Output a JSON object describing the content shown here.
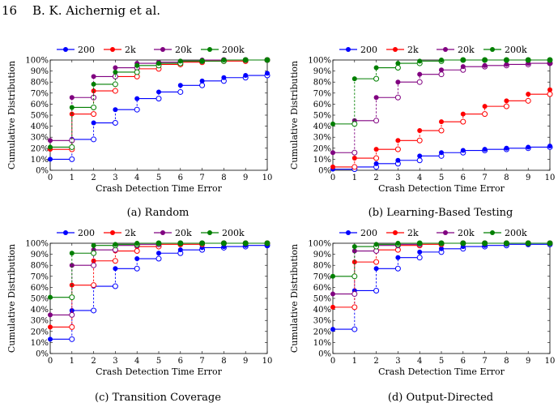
{
  "header": {
    "page_number": "16",
    "authors": "B. K. Aichernig et al."
  },
  "legend_labels": [
    "200",
    "2k",
    "20k",
    "200k"
  ],
  "series_colors": {
    "200": "#0000ff",
    "2k": "#ff0000",
    "20k": "#800080",
    "200k": "#007f00"
  },
  "chart_data": [
    {
      "type": "line",
      "caption": "(a) Random",
      "xlabel": "Crash Detection Time Error",
      "ylabel": "Cumulative Distribution",
      "x": [
        0,
        1,
        2,
        3,
        4,
        5,
        6,
        7,
        8,
        9,
        10
      ],
      "xlim": [
        0,
        10
      ],
      "ylim": [
        0,
        100
      ],
      "x_ticks": [
        "0",
        "1",
        "2",
        "3",
        "4",
        "5",
        "6",
        "7",
        "8",
        "9",
        "10"
      ],
      "y_ticks": [
        "0%",
        "10%",
        "20%",
        "30%",
        "40%",
        "50%",
        "60%",
        "70%",
        "80%",
        "90%",
        "100%"
      ],
      "series": [
        {
          "name": "200",
          "values": [
            10,
            28,
            43,
            55,
            65,
            71,
            77,
            81,
            84,
            86,
            88
          ]
        },
        {
          "name": "2k",
          "values": [
            19,
            51,
            72,
            85,
            92,
            96,
            98,
            99,
            99,
            100,
            100
          ]
        },
        {
          "name": "20k",
          "values": [
            27,
            66,
            85,
            93,
            97,
            98,
            99,
            100,
            100,
            100,
            100
          ]
        },
        {
          "name": "200k",
          "values": [
            21,
            57,
            78,
            89,
            95,
            97,
            99,
            99,
            100,
            100,
            100
          ]
        }
      ]
    },
    {
      "type": "line",
      "caption": "(b) Learning-Based Testing",
      "xlabel": "Crash Detection Time Error",
      "ylabel": "Cumulative Distribution",
      "x": [
        0,
        1,
        2,
        3,
        4,
        5,
        6,
        7,
        8,
        9,
        10
      ],
      "xlim": [
        0,
        10
      ],
      "ylim": [
        0,
        100
      ],
      "x_ticks": [
        "0",
        "1",
        "2",
        "3",
        "4",
        "5",
        "6",
        "7",
        "8",
        "9",
        "10"
      ],
      "y_ticks": [
        "0%",
        "10%",
        "20%",
        "30%",
        "40%",
        "50%",
        "60%",
        "70%",
        "80%",
        "90%",
        "100%"
      ],
      "series": [
        {
          "name": "200",
          "values": [
            1,
            3,
            6,
            9,
            13,
            16,
            18,
            19,
            20,
            21,
            22
          ]
        },
        {
          "name": "2k",
          "values": [
            3,
            11,
            19,
            27,
            36,
            44,
            51,
            58,
            63,
            69,
            73
          ]
        },
        {
          "name": "20k",
          "values": [
            16,
            45,
            66,
            80,
            87,
            91,
            94,
            95,
            96,
            97,
            97
          ]
        },
        {
          "name": "200k",
          "values": [
            42,
            83,
            93,
            97,
            99,
            100,
            100,
            100,
            100,
            100,
            100
          ]
        }
      ]
    },
    {
      "type": "line",
      "caption": "(c) Transition Coverage",
      "xlabel": "Crash Detection Time Error",
      "ylabel": "Cumulative Distribution",
      "x": [
        0,
        1,
        2,
        3,
        4,
        5,
        6,
        7,
        8,
        9,
        10
      ],
      "xlim": [
        0,
        10
      ],
      "ylim": [
        0,
        100
      ],
      "x_ticks": [
        "0",
        "1",
        "2",
        "3",
        "4",
        "5",
        "6",
        "7",
        "8",
        "9",
        "10"
      ],
      "y_ticks": [
        "0%",
        "10%",
        "20%",
        "30%",
        "40%",
        "50%",
        "60%",
        "70%",
        "80%",
        "90%",
        "100%"
      ],
      "series": [
        {
          "name": "200",
          "values": [
            13,
            39,
            61,
            77,
            86,
            91,
            94,
            96,
            97,
            98,
            98
          ]
        },
        {
          "name": "2k",
          "values": [
            24,
            62,
            84,
            93,
            97,
            99,
            99,
            100,
            100,
            100,
            100
          ]
        },
        {
          "name": "20k",
          "values": [
            35,
            80,
            94,
            98,
            99,
            100,
            100,
            100,
            100,
            100,
            100
          ]
        },
        {
          "name": "200k",
          "values": [
            51,
            91,
            98,
            99,
            100,
            100,
            100,
            100,
            100,
            100,
            100
          ]
        }
      ]
    },
    {
      "type": "line",
      "caption": "(d) Output-Directed",
      "xlabel": "Crash Detection Time Error",
      "ylabel": "Cumulative Distribution",
      "x": [
        0,
        1,
        2,
        3,
        4,
        5,
        6,
        7,
        8,
        9,
        10
      ],
      "xlim": [
        0,
        10
      ],
      "ylim": [
        0,
        100
      ],
      "x_ticks": [
        "0",
        "1",
        "2",
        "3",
        "4",
        "5",
        "6",
        "7",
        "8",
        "9",
        "10"
      ],
      "y_ticks": [
        "0%",
        "10%",
        "20%",
        "30%",
        "40%",
        "50%",
        "60%",
        "70%",
        "80%",
        "90%",
        "100%"
      ],
      "series": [
        {
          "name": "200",
          "values": [
            22,
            57,
            77,
            87,
            92,
            95,
            97,
            98,
            99,
            99,
            100
          ]
        },
        {
          "name": "2k",
          "values": [
            42,
            83,
            94,
            98,
            99,
            100,
            100,
            100,
            100,
            100,
            100
          ]
        },
        {
          "name": "20k",
          "values": [
            54,
            93,
            98,
            99,
            100,
            100,
            100,
            100,
            100,
            100,
            100
          ]
        },
        {
          "name": "200k",
          "values": [
            70,
            97,
            99,
            100,
            100,
            100,
            100,
            100,
            100,
            100,
            100
          ]
        }
      ]
    }
  ]
}
